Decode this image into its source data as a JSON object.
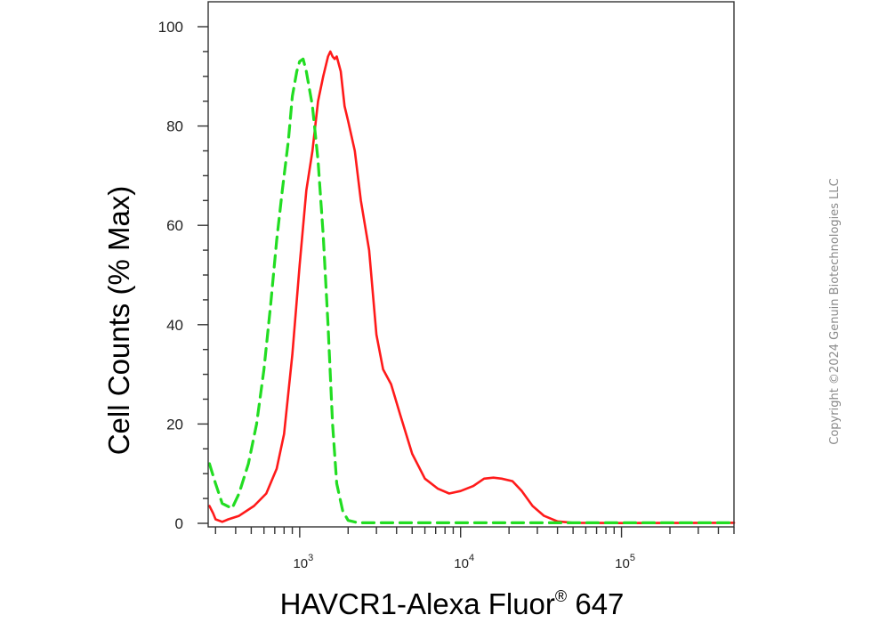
{
  "chart_data": {
    "type": "line",
    "title": "",
    "xlabel": "HAVCR1-Alexa Fluor",
    "xlabel_mark": "®",
    "xlabel_suffix": " 647",
    "ylabel": "Cell Counts (% Max)",
    "x_scale": "log",
    "xlim": [
      270,
      500000
    ],
    "ylim": [
      0,
      100
    ],
    "yticks": [
      0,
      20,
      40,
      60,
      80,
      100
    ],
    "xticks": [
      {
        "value": 1000,
        "base": "10",
        "exp": "3"
      },
      {
        "value": 10000,
        "base": "10",
        "exp": "4"
      },
      {
        "value": 100000,
        "base": "10",
        "exp": "5"
      }
    ],
    "grid": false,
    "series": [
      {
        "color": "#ff1a1a",
        "style": "solid",
        "points": [
          [
            275,
            3.5
          ],
          [
            290,
            2.0
          ],
          [
            300,
            0.8
          ],
          [
            330,
            0.3
          ],
          [
            360,
            0.8
          ],
          [
            420,
            1.5
          ],
          [
            520,
            3.5
          ],
          [
            620,
            6.0
          ],
          [
            720,
            11
          ],
          [
            800,
            18
          ],
          [
            900,
            34
          ],
          [
            1000,
            52
          ],
          [
            1100,
            67
          ],
          [
            1200,
            75
          ],
          [
            1300,
            85
          ],
          [
            1400,
            90
          ],
          [
            1500,
            94
          ],
          [
            1550,
            95
          ],
          [
            1600,
            94
          ],
          [
            1650,
            93.5
          ],
          [
            1700,
            94
          ],
          [
            1800,
            91
          ],
          [
            1900,
            84
          ],
          [
            2000,
            81
          ],
          [
            2200,
            75
          ],
          [
            2400,
            65
          ],
          [
            2700,
            55
          ],
          [
            3000,
            38
          ],
          [
            3300,
            31
          ],
          [
            3700,
            28
          ],
          [
            4200,
            22
          ],
          [
            5000,
            14
          ],
          [
            6000,
            9
          ],
          [
            7200,
            7
          ],
          [
            8500,
            6
          ],
          [
            10000,
            6.5
          ],
          [
            12000,
            7.5
          ],
          [
            14000,
            9
          ],
          [
            16000,
            9.2
          ],
          [
            18000,
            9
          ],
          [
            21000,
            8.5
          ],
          [
            24000,
            6.5
          ],
          [
            28000,
            3.5
          ],
          [
            33000,
            1.5
          ],
          [
            40000,
            0.4
          ],
          [
            50000,
            0.1
          ],
          [
            100000,
            0.05
          ],
          [
            500000,
            0.1
          ]
        ]
      },
      {
        "color": "#22dd22",
        "style": "dashed",
        "points": [
          [
            275,
            12
          ],
          [
            300,
            8
          ],
          [
            330,
            4
          ],
          [
            380,
            3
          ],
          [
            420,
            6
          ],
          [
            480,
            12
          ],
          [
            540,
            20
          ],
          [
            600,
            31
          ],
          [
            660,
            44
          ],
          [
            720,
            57
          ],
          [
            780,
            67
          ],
          [
            850,
            77
          ],
          [
            900,
            86
          ],
          [
            960,
            91
          ],
          [
            1000,
            93
          ],
          [
            1050,
            93.5
          ],
          [
            1100,
            91
          ],
          [
            1200,
            84
          ],
          [
            1300,
            73
          ],
          [
            1400,
            58
          ],
          [
            1500,
            40
          ],
          [
            1600,
            20
          ],
          [
            1700,
            8
          ],
          [
            1850,
            2.5
          ],
          [
            2000,
            0.6
          ],
          [
            2300,
            0.1
          ],
          [
            500000,
            0.1
          ]
        ]
      }
    ]
  },
  "copyright": "Copyright ©2024 Genuin Biotechnologies LLC"
}
